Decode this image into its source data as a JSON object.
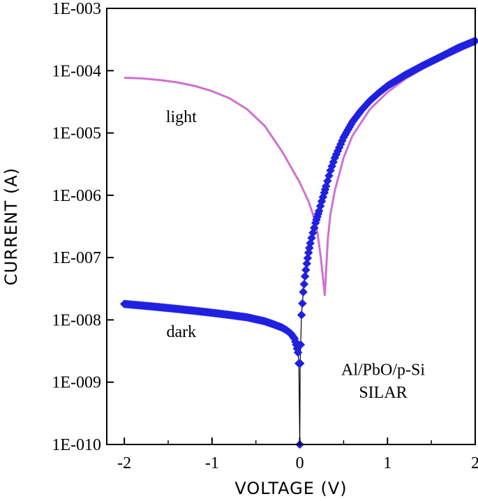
{
  "chart_data": {
    "type": "line",
    "title": "",
    "xlabel": "VOLTAGE (V)",
    "ylabel": "CURRENT (A)",
    "xlim": [
      -2.2,
      2.0
    ],
    "ylim": [
      1e-10,
      0.001
    ],
    "yscale": "log",
    "grid": false,
    "x_ticks": [
      -2,
      -1,
      0,
      1,
      2
    ],
    "x_tick_labels": [
      "-2",
      "-1",
      "0",
      "1",
      "2"
    ],
    "y_ticks": [
      1e-10,
      1e-09,
      1e-08,
      1e-07,
      1e-06,
      1e-05,
      0.0001,
      0.001
    ],
    "y_tick_labels": [
      "1E-010",
      "1E-009",
      "1E-008",
      "1E-007",
      "1E-006",
      "1E-005",
      "1E-004",
      "1E-003"
    ],
    "series": [
      {
        "name": "light",
        "color": "#d070d0",
        "marker": "none",
        "x": [
          -2.0,
          -1.8,
          -1.6,
          -1.4,
          -1.2,
          -1.0,
          -0.8,
          -0.6,
          -0.4,
          -0.2,
          0.0,
          0.1,
          0.15,
          0.2,
          0.24,
          0.27,
          0.285,
          0.3,
          0.32,
          0.35,
          0.4,
          0.5,
          0.6,
          0.8,
          1.0,
          1.2,
          1.5,
          1.8,
          2.0
        ],
        "y": [
          7.7e-05,
          7.5e-05,
          7.1e-05,
          6.5e-05,
          5.7e-05,
          4.7e-05,
          3.6e-05,
          2.4e-05,
          1.3e-05,
          5e-06,
          1.6e-06,
          8e-07,
          5e-07,
          2.6e-07,
          1e-07,
          4e-08,
          2.5e-08,
          6e-08,
          2e-07,
          5e-07,
          1.2e-06,
          4e-06,
          9e-06,
          2.4e-05,
          4.5e-05,
          7.3e-05,
          0.00013,
          0.0002,
          0.00028
        ]
      },
      {
        "name": "dark",
        "color": "#2020e0",
        "marker": "diamond",
        "x": [
          -2.0,
          -1.8,
          -1.6,
          -1.4,
          -1.2,
          -1.0,
          -0.8,
          -0.6,
          -0.4,
          -0.3,
          -0.2,
          -0.15,
          -0.1,
          -0.06,
          -0.04,
          -0.02,
          -0.01,
          0.0,
          0.005,
          0.01,
          0.02,
          0.04,
          0.06,
          0.08,
          0.1,
          0.12,
          0.15,
          0.18,
          0.2,
          0.22,
          0.25,
          0.28,
          0.3,
          0.35,
          0.4,
          0.5,
          0.6,
          0.7,
          0.8,
          0.9,
          1.0,
          1.2,
          1.4,
          1.6,
          1.8,
          2.0
        ],
        "y": [
          1.8e-08,
          1.7e-08,
          1.6e-08,
          1.5e-08,
          1.4e-08,
          1.3e-08,
          1.2e-08,
          1.1e-08,
          9.5e-09,
          8.5e-09,
          7.5e-09,
          6.8e-09,
          6e-09,
          5e-09,
          4e-09,
          3e-09,
          2e-09,
          1e-10,
          2e-09,
          4e-09,
          1.2e-08,
          2.8e-08,
          5e-08,
          8e-08,
          1.2e-07,
          1.7e-07,
          2.5e-07,
          3.6e-07,
          4.5e-07,
          5.6e-07,
          8e-07,
          1.1e-06,
          1.4e-06,
          2.5e-06,
          4e-06,
          8.5e-06,
          1.5e-05,
          2.3e-05,
          3.3e-05,
          4.4e-05,
          5.7e-05,
          8.5e-05,
          0.00012,
          0.000165,
          0.00023,
          0.0003
        ]
      }
    ],
    "annotations": [
      {
        "id": "light",
        "text": "light",
        "x": -1.35,
        "y": 1.5e-05
      },
      {
        "id": "dark",
        "text": "dark",
        "x": -1.35,
        "y": 5.3e-09
      },
      {
        "id": "device",
        "text": "Al/PbO/p-Si",
        "x": 0.95,
        "y": 1.3e-09
      },
      {
        "id": "method",
        "text": "SILAR",
        "x": 0.95,
        "y": 5.6e-10
      }
    ]
  }
}
